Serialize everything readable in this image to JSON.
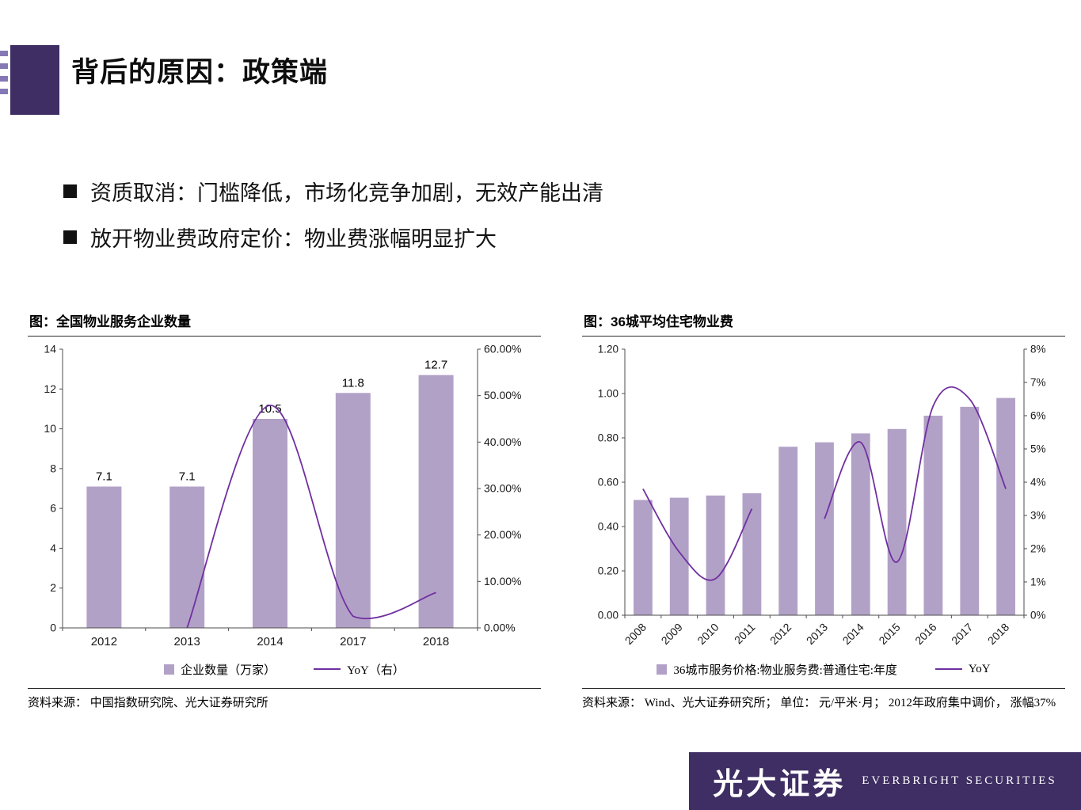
{
  "page_title": "背后的原因：政策端",
  "bullets": [
    {
      "text": "资质取消：门槛降低，市场化竞争加剧，无效产能出清"
    },
    {
      "text": "放开物业费政府定价：物业费涨幅明显扩大"
    }
  ],
  "colors": {
    "accent": "#3e2e63",
    "bar_fill": "#b2a1c7",
    "line": "#7030a0",
    "axis": "#4d4d4d"
  },
  "left_chart": {
    "title": "图：全国物业服务企业数量",
    "legend_bar": "企业数量（万家）",
    "legend_line": "YoY（右）",
    "source": "资料来源： 中国指数研究院、光大证券研究所"
  },
  "right_chart": {
    "title": "图：36城平均住宅物业费",
    "legend_bar": "36城市服务价格:物业服务费:普通住宅:年度",
    "legend_line": "YoY",
    "source": "资料来源： Wind、光大证券研究所； 单位： 元/平米·月； 2012年政府集中调价， 涨幅37%"
  },
  "chart_data": [
    {
      "type": "bar",
      "title": "图：全国物业服务企业数量",
      "categories": [
        "2012",
        "2013",
        "2014",
        "2017",
        "2018"
      ],
      "series": [
        {
          "name": "企业数量（万家）",
          "type": "bar",
          "axis": "left",
          "values": [
            7.1,
            7.1,
            10.5,
            11.8,
            12.7
          ]
        },
        {
          "name": "YoY（右）",
          "type": "line",
          "axis": "right",
          "values": [
            null,
            0.0,
            47.9,
            2.5,
            7.6
          ]
        }
      ],
      "left_axis": {
        "min": 0,
        "max": 14,
        "step": 2,
        "format": "int"
      },
      "right_axis": {
        "min": 0,
        "max": 60,
        "step": 10,
        "format": "pct2"
      },
      "bar_labels": true,
      "x_rotate": 0,
      "grid": false,
      "legend_position": "bottom"
    },
    {
      "type": "bar",
      "title": "图：36城平均住宅物业费",
      "categories": [
        "2008",
        "2009",
        "2010",
        "2011",
        "2012",
        "2013",
        "2014",
        "2015",
        "2016",
        "2017",
        "2018"
      ],
      "series": [
        {
          "name": "36城市服务价格:物业服务费:普通住宅:年度",
          "type": "bar",
          "axis": "left",
          "values": [
            0.52,
            0.53,
            0.54,
            0.55,
            0.76,
            0.78,
            0.82,
            0.84,
            0.9,
            0.94,
            0.98
          ]
        },
        {
          "name": "YoY",
          "type": "line",
          "axis": "right",
          "values": [
            3.8,
            1.9,
            1.1,
            3.2,
            null,
            2.9,
            5.2,
            1.6,
            6.3,
            6.5,
            3.8
          ]
        }
      ],
      "left_axis": {
        "min": 0,
        "max": 1.2,
        "step": 0.2,
        "format": "2dp"
      },
      "right_axis": {
        "min": 0,
        "max": 8,
        "step": 1,
        "format": "pct0"
      },
      "bar_labels": false,
      "x_rotate": -45,
      "grid": false,
      "legend_position": "bottom"
    }
  ],
  "logo": {
    "cn": "光大证券",
    "en": "EVERBRIGHT SECURITIES"
  }
}
